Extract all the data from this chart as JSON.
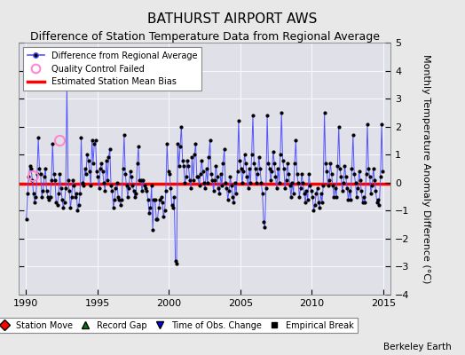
{
  "title": "BATHURST AIRPORT AWS",
  "subtitle": "Difference of Station Temperature Data from Regional Average",
  "ylabel_right": "Monthly Temperature Anomaly Difference (°C)",
  "xlim": [
    1989.5,
    2015.5
  ],
  "ylim": [
    -4,
    5
  ],
  "yticks": [
    -4,
    -3,
    -2,
    -1,
    0,
    1,
    2,
    3,
    4,
    5
  ],
  "xticks": [
    1990,
    1995,
    2000,
    2005,
    2010,
    2015
  ],
  "bias_line": -0.05,
  "bias_color": "#ff0000",
  "line_color": "#5555ff",
  "dot_color": "#000000",
  "qc_color": "#ff88cc",
  "fig_bg_color": "#e8e8e8",
  "plot_bg_color": "#e0e0e8",
  "watermark": "Berkeley Earth",
  "title_fontsize": 11,
  "subtitle_fontsize": 9,
  "ylabel_fontsize": 8,
  "tick_fontsize": 8,
  "time_series": [
    [
      1990.042,
      -1.3
    ],
    [
      1990.125,
      -0.4
    ],
    [
      1990.208,
      0.2
    ],
    [
      1990.292,
      0.6
    ],
    [
      1990.375,
      0.5
    ],
    [
      1990.458,
      0.1
    ],
    [
      1990.542,
      -0.4
    ],
    [
      1990.625,
      -0.7
    ],
    [
      1990.708,
      -0.5
    ],
    [
      1990.792,
      0.3
    ],
    [
      1990.875,
      1.6
    ],
    [
      1990.958,
      0.5
    ],
    [
      1991.042,
      0.3
    ],
    [
      1991.125,
      -0.5
    ],
    [
      1991.208,
      -0.3
    ],
    [
      1991.292,
      0.2
    ],
    [
      1991.375,
      0.5
    ],
    [
      1991.458,
      -0.3
    ],
    [
      1991.542,
      -0.5
    ],
    [
      1991.625,
      -0.6
    ],
    [
      1991.708,
      -0.5
    ],
    [
      1991.792,
      0.1
    ],
    [
      1991.875,
      1.4
    ],
    [
      1991.958,
      0.3
    ],
    [
      1992.042,
      0.1
    ],
    [
      1992.125,
      -0.7
    ],
    [
      1992.208,
      -0.8
    ],
    [
      1992.292,
      -0.4
    ],
    [
      1992.375,
      0.3
    ],
    [
      1992.458,
      -0.2
    ],
    [
      1992.542,
      -0.6
    ],
    [
      1992.625,
      -0.9
    ],
    [
      1992.708,
      -0.7
    ],
    [
      1992.792,
      -0.2
    ],
    [
      1992.875,
      3.5
    ],
    [
      1992.958,
      0.1
    ],
    [
      1993.042,
      -0.3
    ],
    [
      1993.125,
      -0.9
    ],
    [
      1993.208,
      -0.5
    ],
    [
      1993.292,
      0.1
    ],
    [
      1993.375,
      -0.1
    ],
    [
      1993.458,
      -0.5
    ],
    [
      1993.542,
      -0.4
    ],
    [
      1993.625,
      -1.0
    ],
    [
      1993.708,
      -0.8
    ],
    [
      1993.792,
      -0.4
    ],
    [
      1993.875,
      1.6
    ],
    [
      1993.958,
      0.0
    ],
    [
      1994.042,
      -0.1
    ],
    [
      1994.125,
      0.5
    ],
    [
      1994.208,
      0.3
    ],
    [
      1994.292,
      1.0
    ],
    [
      1994.375,
      0.8
    ],
    [
      1994.458,
      0.4
    ],
    [
      1994.542,
      -0.1
    ],
    [
      1994.625,
      1.5
    ],
    [
      1994.708,
      0.7
    ],
    [
      1994.792,
      1.4
    ],
    [
      1994.875,
      1.5
    ],
    [
      1994.958,
      0.4
    ],
    [
      1995.042,
      0.2
    ],
    [
      1995.125,
      -0.2
    ],
    [
      1995.208,
      0.5
    ],
    [
      1995.292,
      0.7
    ],
    [
      1995.375,
      0.4
    ],
    [
      1995.458,
      0.0
    ],
    [
      1995.542,
      -0.3
    ],
    [
      1995.625,
      0.8
    ],
    [
      1995.708,
      0.1
    ],
    [
      1995.792,
      0.9
    ],
    [
      1995.875,
      1.2
    ],
    [
      1995.958,
      -0.1
    ],
    [
      1996.042,
      -0.3
    ],
    [
      1996.125,
      -0.9
    ],
    [
      1996.208,
      -0.6
    ],
    [
      1996.292,
      -0.2
    ],
    [
      1996.375,
      0.0
    ],
    [
      1996.458,
      -0.5
    ],
    [
      1996.542,
      -0.6
    ],
    [
      1996.625,
      -0.8
    ],
    [
      1996.708,
      -0.6
    ],
    [
      1996.792,
      0.5
    ],
    [
      1996.875,
      1.7
    ],
    [
      1996.958,
      0.3
    ],
    [
      1997.042,
      -0.1
    ],
    [
      1997.125,
      -0.5
    ],
    [
      1997.208,
      -0.2
    ],
    [
      1997.292,
      0.4
    ],
    [
      1997.375,
      0.2
    ],
    [
      1997.458,
      -0.1
    ],
    [
      1997.542,
      -0.3
    ],
    [
      1997.625,
      -0.5
    ],
    [
      1997.708,
      -0.4
    ],
    [
      1997.792,
      0.7
    ],
    [
      1997.875,
      1.3
    ],
    [
      1997.958,
      0.1
    ],
    [
      1998.042,
      0.1
    ],
    [
      1998.125,
      -0.3
    ],
    [
      1998.208,
      0.1
    ],
    [
      1998.292,
      -0.1
    ],
    [
      1998.375,
      -0.2
    ],
    [
      1998.458,
      -0.3
    ],
    [
      1998.542,
      -0.6
    ],
    [
      1998.625,
      -1.1
    ],
    [
      1998.708,
      -0.9
    ],
    [
      1998.792,
      -0.1
    ],
    [
      1998.875,
      -1.7
    ],
    [
      1998.958,
      -0.6
    ],
    [
      1999.042,
      -0.6
    ],
    [
      1999.125,
      -1.3
    ],
    [
      1999.208,
      -1.3
    ],
    [
      1999.292,
      -0.9
    ],
    [
      1999.375,
      -0.6
    ],
    [
      1999.458,
      -0.5
    ],
    [
      1999.542,
      -0.7
    ],
    [
      1999.625,
      -1.2
    ],
    [
      1999.708,
      -1.0
    ],
    [
      1999.792,
      -0.3
    ],
    [
      1999.875,
      1.4
    ],
    [
      1999.958,
      0.4
    ],
    [
      2000.042,
      0.3
    ],
    [
      2000.125,
      -0.2
    ],
    [
      2000.208,
      -0.8
    ],
    [
      2000.292,
      -0.9
    ],
    [
      2000.375,
      -0.5
    ],
    [
      2000.458,
      -2.8
    ],
    [
      2000.542,
      -2.9
    ],
    [
      2000.625,
      1.4
    ],
    [
      2000.708,
      0.6
    ],
    [
      2000.792,
      1.3
    ],
    [
      2000.875,
      2.0
    ],
    [
      2000.958,
      0.8
    ],
    [
      2001.042,
      0.6
    ],
    [
      2001.125,
      0.0
    ],
    [
      2001.208,
      0.2
    ],
    [
      2001.292,
      0.8
    ],
    [
      2001.375,
      0.6
    ],
    [
      2001.458,
      0.1
    ],
    [
      2001.542,
      -0.2
    ],
    [
      2001.625,
      0.9
    ],
    [
      2001.708,
      0.1
    ],
    [
      2001.792,
      1.0
    ],
    [
      2001.875,
      1.4
    ],
    [
      2001.958,
      0.2
    ],
    [
      2002.042,
      0.2
    ],
    [
      2002.125,
      -0.1
    ],
    [
      2002.208,
      0.3
    ],
    [
      2002.292,
      0.8
    ],
    [
      2002.375,
      0.4
    ],
    [
      2002.458,
      0.0
    ],
    [
      2002.542,
      -0.2
    ],
    [
      2002.625,
      0.5
    ],
    [
      2002.708,
      0.0
    ],
    [
      2002.792,
      0.9
    ],
    [
      2002.875,
      1.5
    ],
    [
      2002.958,
      0.3
    ],
    [
      2003.042,
      0.1
    ],
    [
      2003.125,
      -0.3
    ],
    [
      2003.208,
      0.1
    ],
    [
      2003.292,
      0.6
    ],
    [
      2003.375,
      0.2
    ],
    [
      2003.458,
      -0.2
    ],
    [
      2003.542,
      -0.4
    ],
    [
      2003.625,
      0.3
    ],
    [
      2003.708,
      -0.1
    ],
    [
      2003.792,
      0.7
    ],
    [
      2003.875,
      1.2
    ],
    [
      2003.958,
      0.0
    ],
    [
      2004.042,
      -0.2
    ],
    [
      2004.125,
      -0.6
    ],
    [
      2004.208,
      -0.3
    ],
    [
      2004.292,
      0.2
    ],
    [
      2004.375,
      -0.1
    ],
    [
      2004.458,
      -0.5
    ],
    [
      2004.542,
      -0.7
    ],
    [
      2004.625,
      0.0
    ],
    [
      2004.708,
      -0.4
    ],
    [
      2004.792,
      0.4
    ],
    [
      2004.875,
      2.2
    ],
    [
      2004.958,
      0.8
    ],
    [
      2005.042,
      0.5
    ],
    [
      2005.125,
      0.0
    ],
    [
      2005.208,
      0.4
    ],
    [
      2005.292,
      1.0
    ],
    [
      2005.375,
      0.7
    ],
    [
      2005.458,
      0.2
    ],
    [
      2005.542,
      -0.2
    ],
    [
      2005.625,
      0.5
    ],
    [
      2005.708,
      0.0
    ],
    [
      2005.792,
      1.0
    ],
    [
      2005.875,
      2.4
    ],
    [
      2005.958,
      0.7
    ],
    [
      2006.042,
      0.5
    ],
    [
      2006.125,
      0.0
    ],
    [
      2006.208,
      0.3
    ],
    [
      2006.292,
      0.9
    ],
    [
      2006.375,
      0.5
    ],
    [
      2006.458,
      0.0
    ],
    [
      2006.542,
      -0.4
    ],
    [
      2006.625,
      -1.4
    ],
    [
      2006.708,
      -1.6
    ],
    [
      2006.792,
      -0.2
    ],
    [
      2006.875,
      2.4
    ],
    [
      2006.958,
      0.7
    ],
    [
      2007.042,
      0.5
    ],
    [
      2007.125,
      0.1
    ],
    [
      2007.208,
      0.4
    ],
    [
      2007.292,
      1.1
    ],
    [
      2007.375,
      0.7
    ],
    [
      2007.458,
      0.2
    ],
    [
      2007.542,
      -0.2
    ],
    [
      2007.625,
      0.5
    ],
    [
      2007.708,
      0.0
    ],
    [
      2007.792,
      1.0
    ],
    [
      2007.875,
      2.5
    ],
    [
      2007.958,
      0.8
    ],
    [
      2008.042,
      0.5
    ],
    [
      2008.125,
      -0.2
    ],
    [
      2008.208,
      0.1
    ],
    [
      2008.292,
      0.7
    ],
    [
      2008.375,
      0.3
    ],
    [
      2008.458,
      -0.1
    ],
    [
      2008.542,
      -0.5
    ],
    [
      2008.625,
      0.0
    ],
    [
      2008.708,
      -0.4
    ],
    [
      2008.792,
      0.7
    ],
    [
      2008.875,
      1.5
    ],
    [
      2008.958,
      0.3
    ],
    [
      2009.042,
      0.0
    ],
    [
      2009.125,
      -0.5
    ],
    [
      2009.208,
      -0.2
    ],
    [
      2009.292,
      0.3
    ],
    [
      2009.375,
      0.0
    ],
    [
      2009.458,
      -0.4
    ],
    [
      2009.542,
      -0.7
    ],
    [
      2009.625,
      -0.3
    ],
    [
      2009.708,
      -0.6
    ],
    [
      2009.792,
      0.3
    ],
    [
      2009.875,
      -0.1
    ],
    [
      2009.958,
      -0.3
    ],
    [
      2010.042,
      -0.5
    ],
    [
      2010.125,
      -1.0
    ],
    [
      2010.208,
      -0.8
    ],
    [
      2010.292,
      -0.4
    ],
    [
      2010.375,
      -0.2
    ],
    [
      2010.458,
      -0.7
    ],
    [
      2010.542,
      -0.9
    ],
    [
      2010.625,
      -0.4
    ],
    [
      2010.708,
      -0.7
    ],
    [
      2010.792,
      -0.1
    ],
    [
      2010.875,
      2.5
    ],
    [
      2010.958,
      0.7
    ],
    [
      2011.042,
      0.4
    ],
    [
      2011.125,
      -0.1
    ],
    [
      2011.208,
      0.1
    ],
    [
      2011.292,
      0.7
    ],
    [
      2011.375,
      0.3
    ],
    [
      2011.458,
      -0.1
    ],
    [
      2011.542,
      -0.5
    ],
    [
      2011.625,
      -0.2
    ],
    [
      2011.708,
      -0.5
    ],
    [
      2011.792,
      0.6
    ],
    [
      2011.875,
      2.0
    ],
    [
      2011.958,
      0.5
    ],
    [
      2012.042,
      0.2
    ],
    [
      2012.125,
      -0.3
    ],
    [
      2012.208,
      0.0
    ],
    [
      2012.292,
      0.6
    ],
    [
      2012.375,
      0.2
    ],
    [
      2012.458,
      -0.2
    ],
    [
      2012.542,
      -0.6
    ],
    [
      2012.625,
      -0.3
    ],
    [
      2012.708,
      -0.6
    ],
    [
      2012.792,
      0.5
    ],
    [
      2012.875,
      1.7
    ],
    [
      2012.958,
      0.3
    ],
    [
      2013.042,
      0.0
    ],
    [
      2013.125,
      -0.5
    ],
    [
      2013.208,
      -0.2
    ],
    [
      2013.292,
      0.4
    ],
    [
      2013.375,
      0.1
    ],
    [
      2013.458,
      -0.3
    ],
    [
      2013.542,
      -0.7
    ],
    [
      2013.625,
      -0.5
    ],
    [
      2013.708,
      -0.7
    ],
    [
      2013.792,
      0.3
    ],
    [
      2013.875,
      2.1
    ],
    [
      2013.958,
      0.5
    ],
    [
      2014.042,
      0.2
    ],
    [
      2014.125,
      -0.4
    ],
    [
      2014.208,
      -0.1
    ],
    [
      2014.292,
      0.5
    ],
    [
      2014.375,
      0.1
    ],
    [
      2014.458,
      -0.3
    ],
    [
      2014.542,
      -0.7
    ],
    [
      2014.625,
      -0.6
    ],
    [
      2014.708,
      -0.8
    ],
    [
      2014.792,
      0.2
    ],
    [
      2014.875,
      2.1
    ],
    [
      2014.958,
      0.4
    ]
  ],
  "qc_failed_points": [
    [
      1990.5,
      0.25
    ],
    [
      1992.375,
      1.5
    ]
  ],
  "obs_change_times": [],
  "station_move_times": [],
  "record_gap_times": [],
  "empirical_break_times": []
}
